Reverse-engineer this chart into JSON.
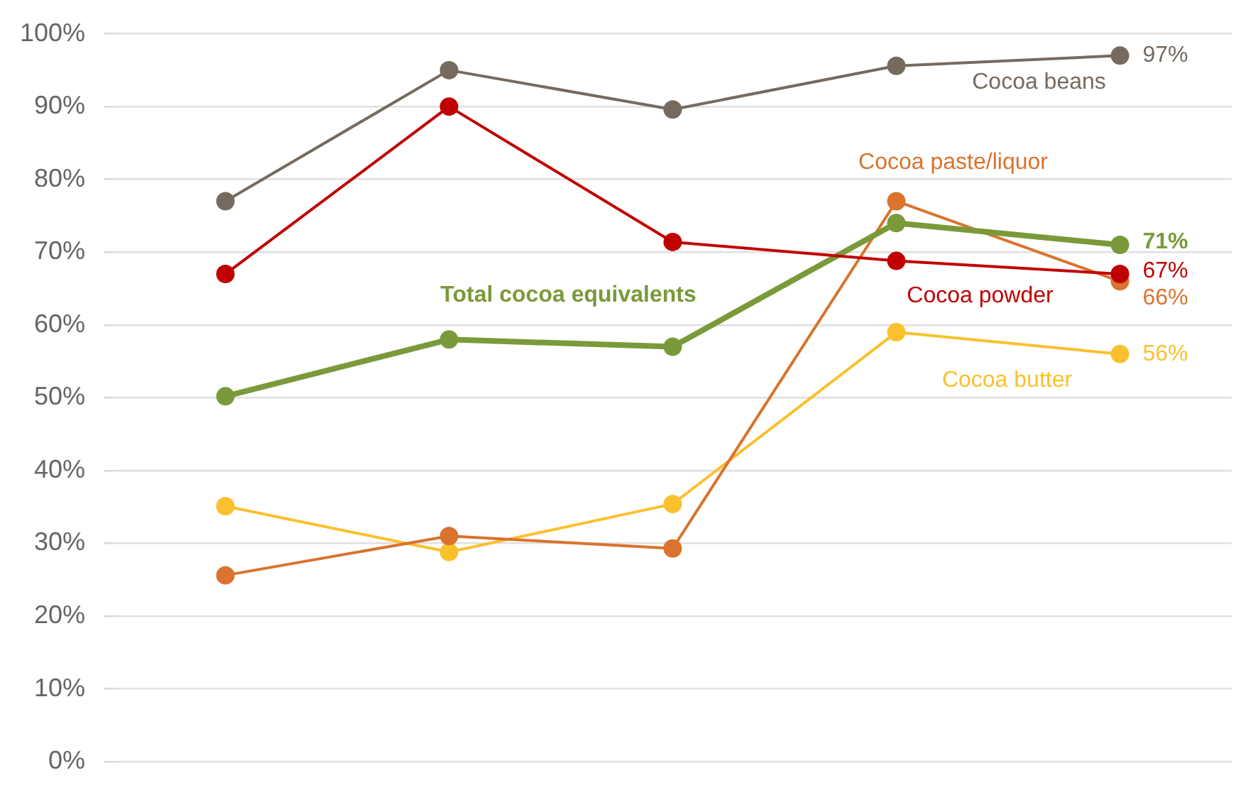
{
  "chart_data": {
    "type": "line",
    "categories": [
      null,
      null,
      null,
      null,
      null
    ],
    "series": [
      {
        "name": "Cocoa beans",
        "color": "#766a5e",
        "values": [
          77,
          95,
          89.6,
          95.6,
          97
        ],
        "value_labels": [
          null,
          null,
          null,
          null,
          "97%"
        ]
      },
      {
        "name": "Cocoa powder",
        "color": "#c00000",
        "values": [
          67,
          90,
          71.4,
          68.8,
          67
        ],
        "value_labels": [
          null,
          null,
          null,
          null,
          "67%"
        ]
      },
      {
        "name": "Total cocoa equivalents",
        "color": "#7a9a3a",
        "values": [
          50.2,
          58,
          57,
          74,
          71
        ],
        "value_labels": [
          null,
          null,
          null,
          null,
          "71%"
        ]
      },
      {
        "name": "Cocoa paste/liquor",
        "color": "#d9732e",
        "values": [
          25.6,
          31,
          29.3,
          77,
          66
        ],
        "value_labels": [
          null,
          null,
          null,
          null,
          "66%"
        ]
      },
      {
        "name": "Cocoa butter",
        "color": "#fbc02d",
        "values": [
          35.1,
          28.8,
          35.4,
          59,
          56
        ],
        "value_labels": [
          null,
          null,
          null,
          null,
          "56%"
        ]
      }
    ],
    "ylim": [
      0,
      100
    ],
    "yticks": [
      {
        "value": 0,
        "label": "0%"
      },
      {
        "value": 10,
        "label": "10%"
      },
      {
        "value": 20,
        "label": "20%"
      },
      {
        "value": 30,
        "label": "30%"
      },
      {
        "value": 40,
        "label": "40%"
      },
      {
        "value": 50,
        "label": "50%"
      },
      {
        "value": 60,
        "label": "60%"
      },
      {
        "value": 70,
        "label": "70%"
      },
      {
        "value": 80,
        "label": "80%"
      },
      {
        "value": 90,
        "label": "90%"
      },
      {
        "value": 100,
        "label": "100%"
      }
    ],
    "grid": "y",
    "marker": "circle",
    "line_style": "solid",
    "legend": false
  }
}
